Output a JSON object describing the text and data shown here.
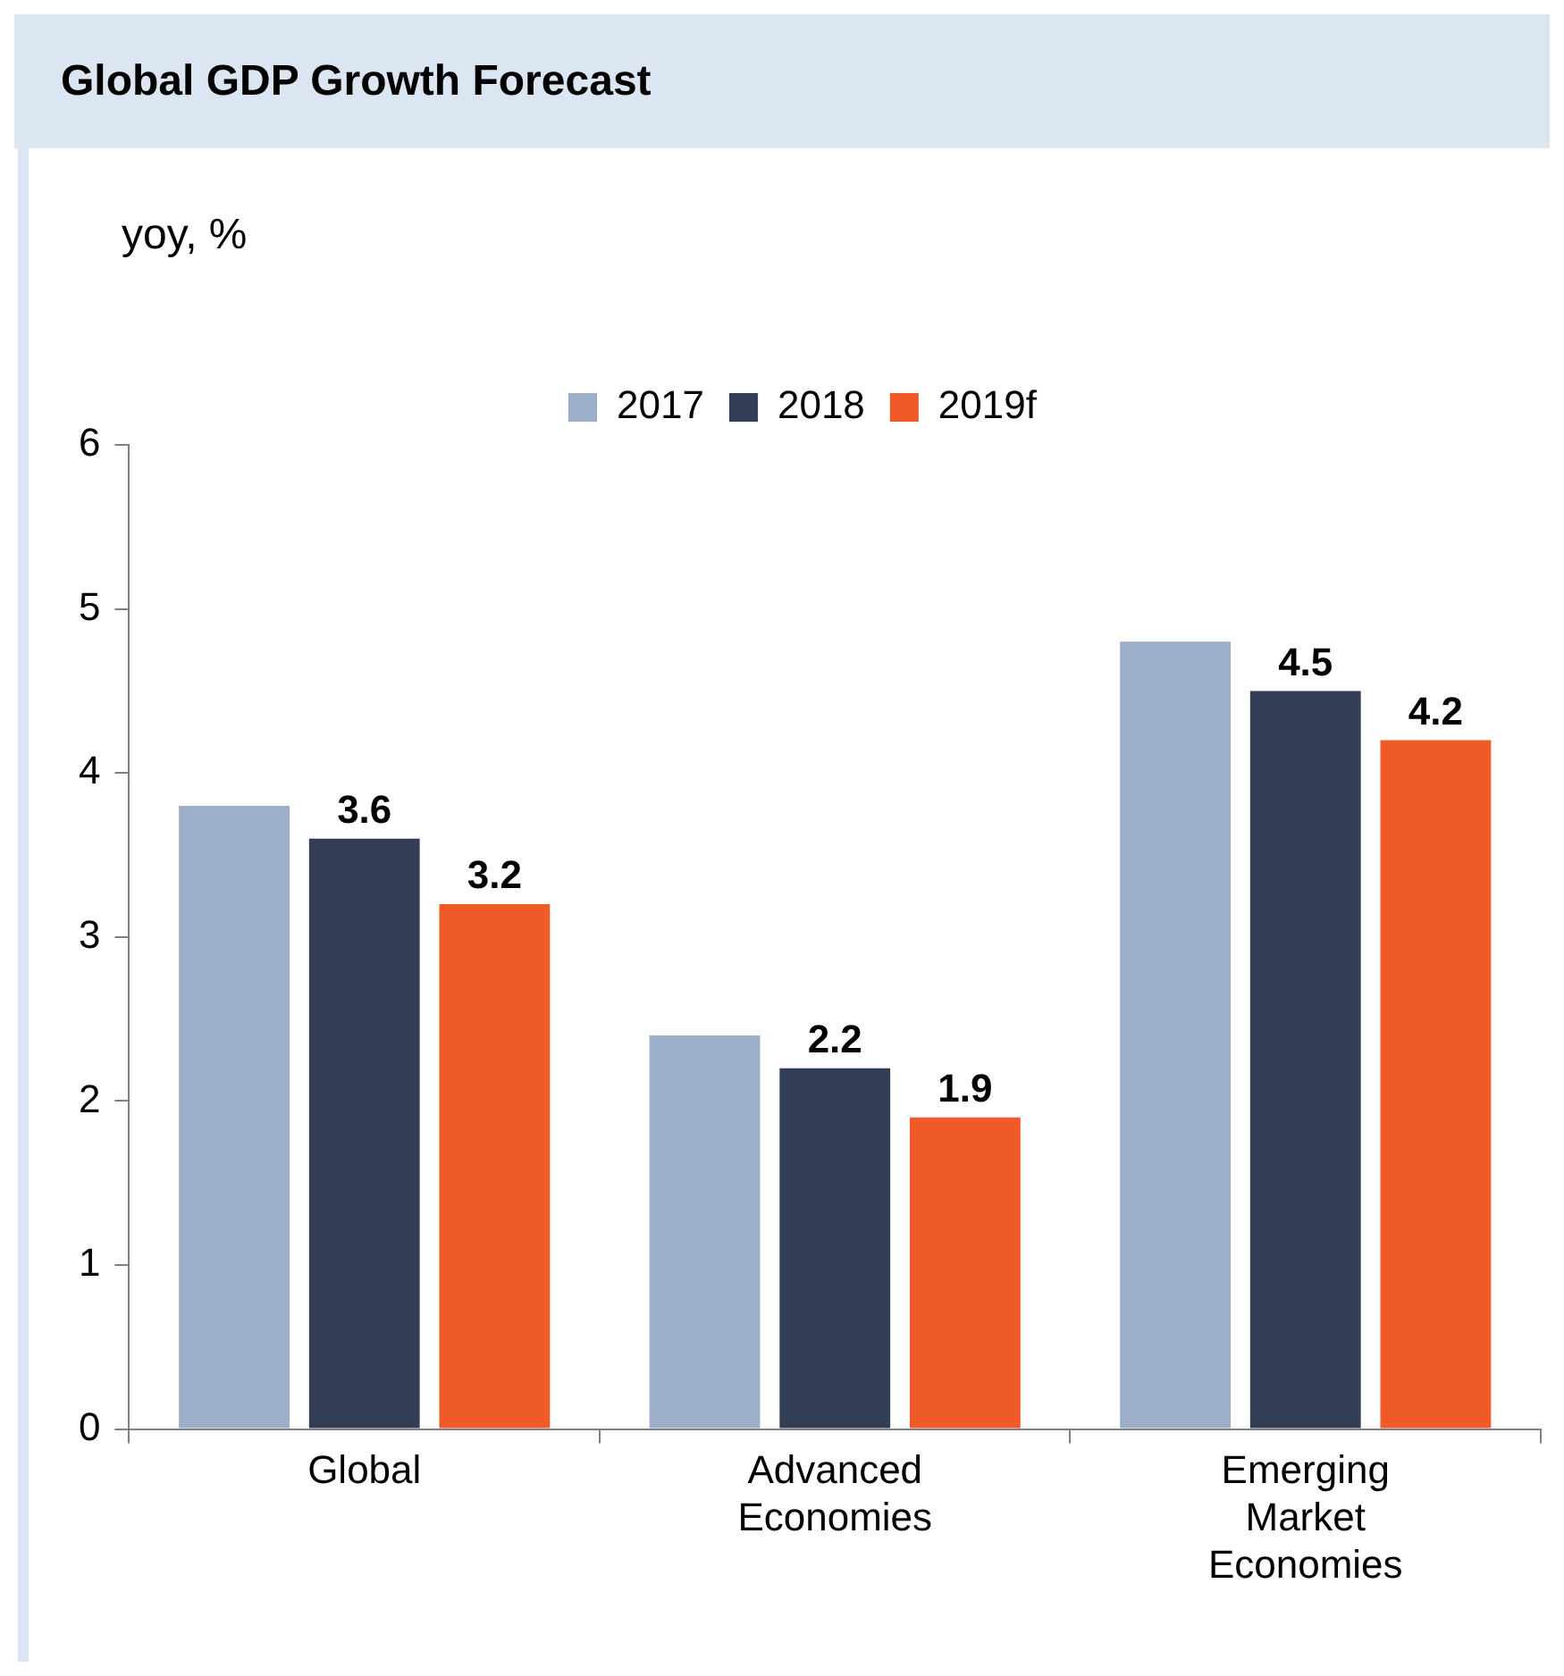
{
  "chart_data": {
    "type": "bar",
    "title": "Global GDP Growth Forecast",
    "ylabel": "yoy, %",
    "categories": [
      "Global",
      "Advanced Economies",
      "Emerging Market Economies"
    ],
    "series": [
      {
        "name": "2017",
        "color": "#9caec8",
        "values": [
          3.8,
          2.4,
          4.8
        ]
      },
      {
        "name": "2018",
        "color": "#323e55",
        "values": [
          3.6,
          2.2,
          4.5
        ],
        "value_labels": [
          "3.6",
          "2.2",
          "4.5"
        ]
      },
      {
        "name": "2019f",
        "color": "#f05a28",
        "values": [
          3.2,
          1.9,
          4.2
        ],
        "value_labels": [
          "3.2",
          "1.9",
          "4.2"
        ]
      }
    ],
    "ylim": [
      0,
      6
    ],
    "yticks": [
      0,
      1,
      2,
      3,
      4,
      5,
      6
    ],
    "grid": false,
    "legend": "top"
  }
}
